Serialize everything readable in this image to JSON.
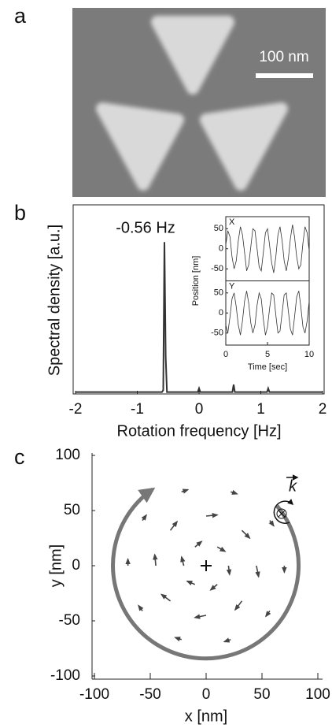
{
  "panel_labels": [
    "a",
    "b",
    "c"
  ],
  "image": {
    "scale_bar_label": "100 nm"
  },
  "chart_data": [
    {
      "type": "line",
      "xlabel": "Rotation frequency [Hz]",
      "ylabel": "Spectral density [a.u.]",
      "annotation": "-0.56 Hz",
      "x": [
        -2,
        -0.6,
        -0.58,
        -0.56,
        -0.54,
        -0.52,
        -0.02,
        0,
        0.02,
        0.54,
        0.56,
        0.58,
        1.1,
        1.12,
        1.14,
        2
      ],
      "values": [
        0.01,
        0.01,
        0.02,
        0.81,
        0.2,
        0.01,
        0.01,
        0.03,
        0.01,
        0.01,
        0.05,
        0.01,
        0.01,
        0.03,
        0.01,
        0.01
      ],
      "color": "#333333",
      "xlim": [
        -2,
        2
      ],
      "xticks": [
        -2,
        -1,
        0,
        1,
        2
      ],
      "ylim": [
        0,
        1
      ]
    },
    {
      "type": "line",
      "xlabel": "Time [sec]",
      "ylabel": "Position [nm]",
      "stacked": true,
      "x": [
        0,
        0.25,
        0.5,
        0.75,
        1,
        1.25,
        1.5,
        1.75,
        2,
        2.25,
        2.5,
        2.75,
        3,
        3.25,
        3.5,
        3.75,
        4,
        4.25,
        4.5,
        4.75,
        5,
        5.25,
        5.5,
        5.75,
        6,
        6.25,
        6.5,
        6.75,
        7,
        7.25,
        7.5,
        7.75,
        8,
        8.25,
        8.5,
        8.75,
        9,
        9.25,
        9.5,
        9.75,
        10
      ],
      "series": [
        {
          "name": "X",
          "color": "#333333",
          "values": [
            10,
            45,
            30,
            -20,
            -50,
            -30,
            20,
            55,
            35,
            -10,
            -55,
            -40,
            5,
            50,
            45,
            0,
            -45,
            -55,
            -10,
            40,
            50,
            10,
            -35,
            -60,
            -20,
            35,
            55,
            20,
            -30,
            -55,
            -25,
            25,
            60,
            30,
            -20,
            -50,
            -40,
            15,
            55,
            40,
            -5
          ]
        },
        {
          "name": "Y",
          "color": "#333333",
          "values": [
            -30,
            -50,
            -10,
            35,
            50,
            15,
            -30,
            -55,
            -20,
            30,
            55,
            25,
            -25,
            -50,
            -30,
            20,
            50,
            35,
            -15,
            -55,
            -35,
            10,
            50,
            45,
            -5,
            -50,
            -45,
            0,
            45,
            50,
            5,
            -40,
            -55,
            -10,
            40,
            55,
            15,
            -35,
            -50,
            -20,
            30
          ]
        }
      ],
      "xlim": [
        0,
        10
      ],
      "xticks": [
        0,
        5,
        10
      ],
      "ylim": [
        -80,
        80
      ],
      "yticks": [
        -50,
        0,
        50
      ]
    },
    {
      "type": "quiver",
      "xlabel": "x [nm]",
      "ylabel": "y [nm]",
      "annotation": "k",
      "color": "#444444",
      "x": [
        20,
        10,
        -10,
        -20,
        -10,
        10,
        45,
        32,
        0,
        -32,
        -45,
        -32,
        0,
        32,
        70,
        57,
        22,
        -22,
        -57,
        -70,
        -57,
        -22,
        22,
        57
      ],
      "y": [
        0,
        17,
        17,
        0,
        -17,
        -17,
        0,
        32,
        45,
        32,
        0,
        -32,
        -45,
        -32,
        0,
        41,
        67,
        67,
        41,
        0,
        -41,
        -67,
        -67,
        -41
      ],
      "u": [
        1,
        7,
        6,
        -2,
        -7,
        -6,
        2,
        7,
        10,
        6,
        -1,
        -8,
        -10,
        -6,
        0,
        3.5,
        5.7,
        5.7,
        3.5,
        0,
        -3.5,
        -5.7,
        -5.7,
        -3.5
      ],
      "v": [
        -8,
        -4,
        5,
        8,
        3,
        -5,
        -10,
        -7,
        1,
        8,
        10,
        6,
        -2,
        -8,
        -6,
        -4.9,
        -1.9,
        1.9,
        4.9,
        6,
        4.9,
        1.9,
        -1.9,
        -4.9
      ],
      "xlim": [
        -100,
        100
      ],
      "ylim": [
        -100,
        100
      ],
      "xticks": [
        -100,
        -50,
        0,
        50,
        100
      ],
      "yticks": [
        -100,
        -50,
        0,
        50,
        100
      ]
    }
  ]
}
